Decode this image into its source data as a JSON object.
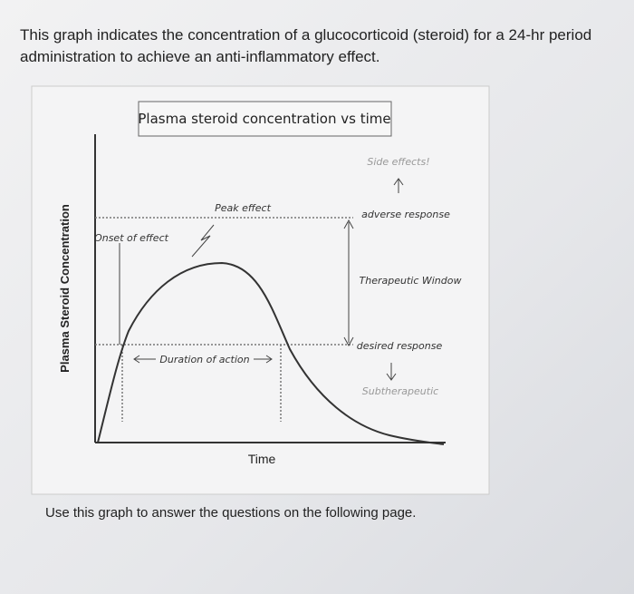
{
  "header": {
    "line1": "This graph indicates the concentration of a glucocorticoid (steroid) for a 24-hr period",
    "line2": "administration to achieve an anti-inflammatory effect."
  },
  "diagram": {
    "title": "Plasma steroid concentration vs time",
    "y_label": "Plasma Steroid Concentration",
    "x_label": "Time",
    "annotations": {
      "side_effects": "Side effects!",
      "adverse": "adverse response",
      "peak": "Peak effect",
      "onset": "Onset of effect",
      "window": "Therapeutic Window",
      "desired": "desired response",
      "duration": "Duration of action",
      "subtherapeutic": "Subtherapeutic"
    }
  },
  "footer": "Use this graph to answer the questions on the following page."
}
